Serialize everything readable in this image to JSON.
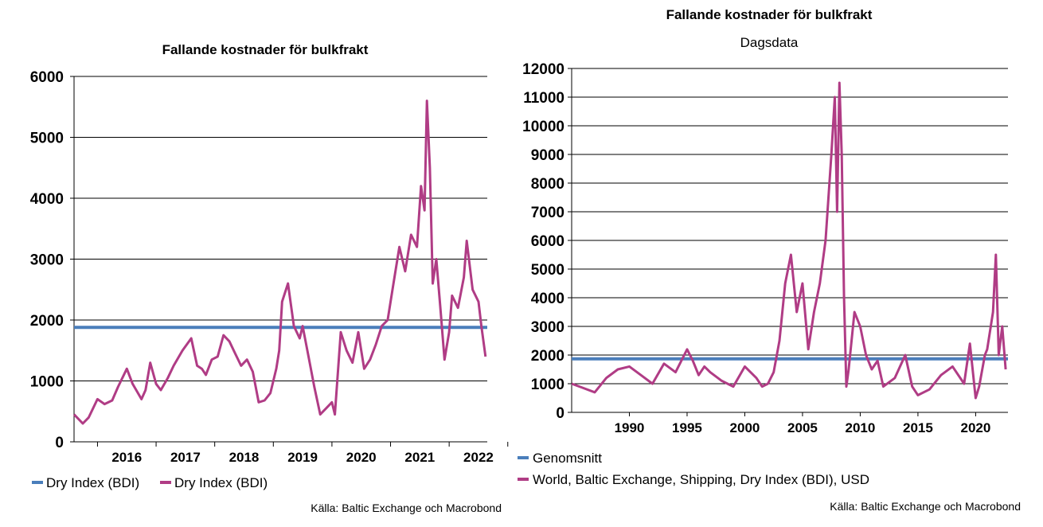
{
  "colors": {
    "average": "#4a7ebb",
    "bdi": "#b03c85",
    "grid": "#000000"
  },
  "chart_data": [
    {
      "type": "line",
      "title": "Fallande kostnader för bulkfrakt",
      "subtitle": "",
      "xlabel": "",
      "ylabel": "",
      "xlim": [
        2015.6,
        2022.65
      ],
      "ylim": [
        0,
        6000
      ],
      "yticks": [
        "0",
        "1000",
        "2000",
        "3000",
        "4000",
        "5000",
        "6000"
      ],
      "xticks": [
        "2016",
        "2017",
        "2018",
        "2019",
        "2020",
        "2021",
        "2022"
      ],
      "grid": true,
      "legend_position": "bottom",
      "source": "Källa: Baltic Exchange och Macrobond",
      "series": [
        {
          "name": "Dry Index (BDI)",
          "role": "average",
          "x": [
            2015.6,
            2022.65
          ],
          "y": [
            1880,
            1880
          ]
        },
        {
          "name": "Dry Index (BDI)",
          "role": "bdi",
          "x": [
            2015.6,
            2015.75,
            2015.85,
            2016.0,
            2016.12,
            2016.25,
            2016.35,
            2016.5,
            2016.6,
            2016.75,
            2016.82,
            2016.9,
            2017.0,
            2017.08,
            2017.2,
            2017.3,
            2017.45,
            2017.6,
            2017.7,
            2017.78,
            2017.85,
            2017.95,
            2018.05,
            2018.15,
            2018.25,
            2018.35,
            2018.45,
            2018.55,
            2018.65,
            2018.75,
            2018.85,
            2018.95,
            2019.05,
            2019.1,
            2019.15,
            2019.25,
            2019.35,
            2019.45,
            2019.5,
            2019.6,
            2019.7,
            2019.8,
            2019.9,
            2020.0,
            2020.05,
            2020.15,
            2020.25,
            2020.35,
            2020.45,
            2020.55,
            2020.65,
            2020.75,
            2020.85,
            2020.95,
            2021.05,
            2021.15,
            2021.25,
            2021.35,
            2021.45,
            2021.52,
            2021.58,
            2021.62,
            2021.67,
            2021.72,
            2021.78,
            2021.85,
            2021.92,
            2022.0,
            2022.05,
            2022.15,
            2022.25,
            2022.3,
            2022.4,
            2022.5,
            2022.55,
            2022.62
          ],
          "y": [
            450,
            300,
            400,
            700,
            620,
            680,
            900,
            1200,
            950,
            700,
            850,
            1300,
            950,
            850,
            1050,
            1250,
            1500,
            1700,
            1250,
            1200,
            1100,
            1350,
            1400,
            1750,
            1650,
            1450,
            1250,
            1350,
            1150,
            650,
            680,
            800,
            1200,
            1500,
            2300,
            2600,
            1900,
            1700,
            1900,
            1400,
            900,
            450,
            550,
            650,
            450,
            1800,
            1500,
            1300,
            1800,
            1200,
            1350,
            1600,
            1900,
            2000,
            2600,
            3200,
            2800,
            3400,
            3200,
            4200,
            3800,
            5600,
            4500,
            2600,
            3000,
            2200,
            1350,
            1800,
            2400,
            2200,
            2700,
            3300,
            2500,
            2300,
            1900,
            1400
          ]
        }
      ]
    },
    {
      "type": "line",
      "title": "Fallande kostnader för bulkfrakt",
      "subtitle": "Dagsdata",
      "xlabel": "",
      "ylabel": "",
      "xlim": [
        1985,
        2022.8
      ],
      "ylim": [
        0,
        12000
      ],
      "yticks": [
        "0",
        "1000",
        "2000",
        "3000",
        "4000",
        "5000",
        "6000",
        "7000",
        "8000",
        "9000",
        "10000",
        "11000",
        "12000"
      ],
      "xticks": [
        "1990",
        "1995",
        "2000",
        "2005",
        "2010",
        "2015",
        "2020"
      ],
      "grid": true,
      "legend_position": "bottom",
      "source": "Källa: Baltic Exchange och Macrobond",
      "series": [
        {
          "name": "Genomsnitt",
          "role": "average",
          "x": [
            1985,
            2022.8
          ],
          "y": [
            1870,
            1870
          ]
        },
        {
          "name": "World, Baltic Exchange, Shipping, Dry Index (BDI), USD",
          "role": "bdi",
          "x": [
            1985,
            1986,
            1987,
            1988,
            1989,
            1990,
            1991,
            1992,
            1993,
            1994,
            1995,
            1995.5,
            1996,
            1996.5,
            1997,
            1998,
            1999,
            2000,
            2001,
            2001.5,
            2002,
            2002.5,
            2003,
            2003.5,
            2004,
            2004.5,
            2005,
            2005.5,
            2006,
            2006.5,
            2007,
            2007.5,
            2007.8,
            2008.0,
            2008.2,
            2008.4,
            2008.6,
            2008.8,
            2009,
            2009.5,
            2010,
            2010.5,
            2011,
            2011.5,
            2012,
            2013,
            2013.9,
            2014.5,
            2015,
            2016,
            2017,
            2018,
            2019,
            2019.5,
            2020,
            2020.3,
            2020.8,
            2021,
            2021.5,
            2021.75,
            2022,
            2022.3,
            2022.6
          ],
          "y": [
            1000,
            850,
            700,
            1200,
            1500,
            1600,
            1300,
            1000,
            1700,
            1400,
            2200,
            1800,
            1300,
            1600,
            1400,
            1100,
            900,
            1600,
            1200,
            900,
            1000,
            1400,
            2500,
            4500,
            5500,
            3500,
            4500,
            2200,
            3500,
            4500,
            6000,
            9000,
            11000,
            7000,
            11500,
            9000,
            4000,
            900,
            1500,
            3500,
            3000,
            2000,
            1500,
            1800,
            900,
            1200,
            2000,
            900,
            600,
            800,
            1300,
            1600,
            1000,
            2400,
            500,
            900,
            2000,
            2200,
            3500,
            5500,
            2000,
            3000,
            1500
          ]
        }
      ]
    }
  ]
}
